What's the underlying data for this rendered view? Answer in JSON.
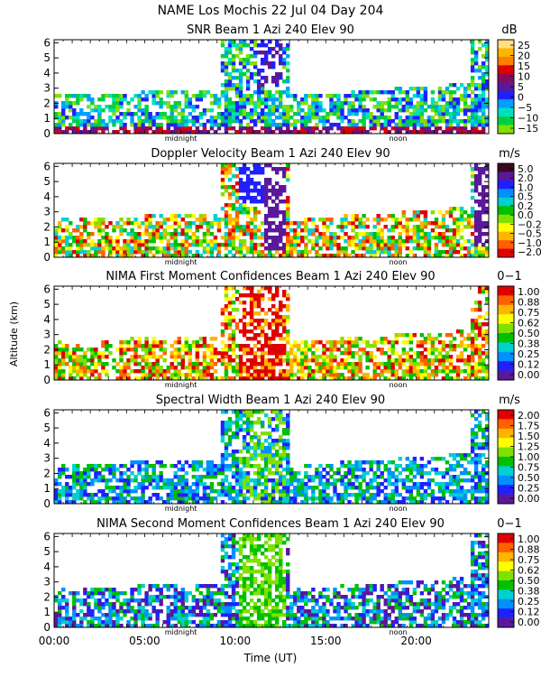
{
  "figure": {
    "title": "NAME Los Mochis    22 Jul 04 Day 204",
    "ylabel": "Altitude (km)",
    "xlabel": "Time (UT)",
    "x_ticks": [
      "00:00",
      "05:00",
      "10:00",
      "15:00",
      "20:00"
    ],
    "x_tick_hours": [
      0,
      5,
      10,
      15,
      20
    ],
    "x_range_hours": [
      0,
      24
    ],
    "markers": {
      "midnight_label": "midnight",
      "midnight_hour": 7,
      "noon_label": "noon",
      "noon_hour": 19
    }
  },
  "chart_data": [
    {
      "type": "heatmap",
      "title": "SNR Beam 1 Azi 240 Elev 90",
      "unit": "dB",
      "y_ticks": [
        "0",
        "1",
        "2",
        "3",
        "4",
        "5",
        "6"
      ],
      "ylim": [
        0,
        6.2
      ],
      "colorbar_labels": [
        "25",
        "20",
        "15",
        "10",
        "5",
        "0",
        "−5",
        "−10",
        "−15"
      ],
      "colorbar_colors": [
        "#ffdf80",
        "#ffb400",
        "#ff7f00",
        "#e00000",
        "#8b0a5a",
        "#5a189a",
        "#2020ff",
        "#00a0ff",
        "#00e0c0",
        "#00d040",
        "#80e000"
      ]
    },
    {
      "type": "heatmap",
      "title": "Doppler Velocity Beam 1 Azi 240 Elev 90",
      "unit": "m/s",
      "y_ticks": [
        "0",
        "1",
        "2",
        "3",
        "4",
        "5",
        "6"
      ],
      "ylim": [
        0,
        6.2
      ],
      "colorbar_labels": [
        "5.0",
        "2.0",
        "1.0",
        "0.5",
        "0.2",
        "0.0",
        "−0.2",
        "−0.5",
        "−1.0",
        "−2.0"
      ],
      "colorbar_colors": [
        "#3a0a20",
        "#5a189a",
        "#2020ff",
        "#0090ff",
        "#00d0d0",
        "#00c000",
        "#80e000",
        "#ffff00",
        "#ffb400",
        "#ff6000",
        "#e00000"
      ]
    },
    {
      "type": "heatmap",
      "title": "NIMA First Moment Confidences Beam 1 Azi 240 Elev 90",
      "unit": "0−1",
      "y_ticks": [
        "0",
        "1",
        "2",
        "3",
        "4",
        "5",
        "6"
      ],
      "ylim": [
        0,
        6.2
      ],
      "colorbar_labels": [
        "1.00",
        "0.88",
        "0.75",
        "0.62",
        "0.50",
        "0.38",
        "0.25",
        "0.12",
        "0.00"
      ],
      "colorbar_colors": [
        "#e00000",
        "#ff6000",
        "#ffb400",
        "#ffff00",
        "#80e000",
        "#00c000",
        "#00d0d0",
        "#0090ff",
        "#2020ff",
        "#5a189a"
      ]
    },
    {
      "type": "heatmap",
      "title": "Spectral Width Beam 1 Azi 240 Elev 90",
      "unit": "m/s",
      "y_ticks": [
        "0",
        "1",
        "2",
        "3",
        "4",
        "5",
        "6"
      ],
      "ylim": [
        0,
        6.2
      ],
      "colorbar_labels": [
        "2.00",
        "1.75",
        "1.50",
        "1.25",
        "1.00",
        "0.75",
        "0.50",
        "0.25",
        "0.00"
      ],
      "colorbar_colors": [
        "#e00000",
        "#ff6000",
        "#ffb400",
        "#ffff00",
        "#80e000",
        "#00c000",
        "#00d0d0",
        "#0090ff",
        "#2020ff",
        "#5a189a"
      ]
    },
    {
      "type": "heatmap",
      "title": "NIMA Second Moment Confidences Beam 1 Azi 240 Elev 90",
      "unit": "0−1",
      "y_ticks": [
        "0",
        "1",
        "2",
        "3",
        "4",
        "5",
        "6"
      ],
      "ylim": [
        0,
        6.2
      ],
      "colorbar_labels": [
        "1.00",
        "0.88",
        "0.75",
        "0.62",
        "0.50",
        "0.38",
        "0.25",
        "0.12",
        "0.00"
      ],
      "colorbar_colors": [
        "#e00000",
        "#ff6000",
        "#ffb400",
        "#ffff00",
        "#80e000",
        "#00c000",
        "#00d0d0",
        "#0090ff",
        "#2020ff",
        "#5a189a"
      ]
    }
  ]
}
